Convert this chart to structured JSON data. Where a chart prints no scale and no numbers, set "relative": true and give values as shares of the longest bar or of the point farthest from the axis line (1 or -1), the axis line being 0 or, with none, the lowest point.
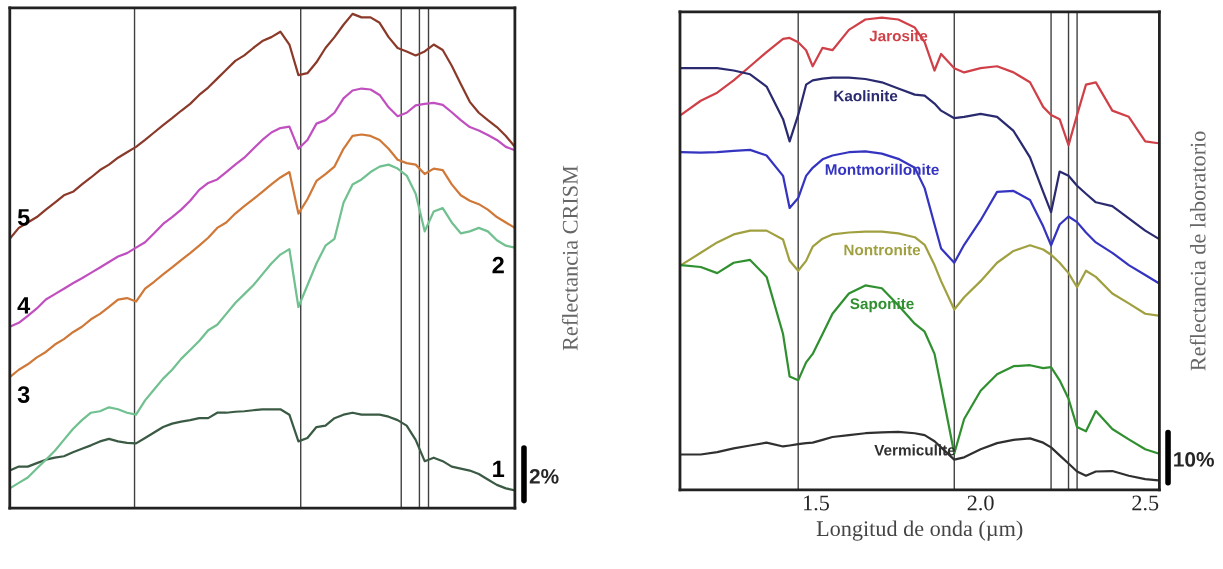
{
  "chart_data": [
    {
      "type": "line",
      "relative": true,
      "ylabel": "Reflectancia CRISM",
      "tick_labels": false,
      "grid": false,
      "legend": false,
      "categories": [
        null,
        null,
        null,
        null,
        null,
        null,
        null,
        null,
        null,
        null,
        null,
        null,
        null,
        null,
        null,
        null,
        null,
        null,
        null,
        null,
        null,
        null,
        null,
        null,
        null,
        null,
        null,
        null,
        null,
        null,
        null,
        null,
        null,
        null,
        null,
        null,
        null,
        null,
        null,
        null,
        null,
        null,
        null,
        null,
        null,
        null,
        null,
        null,
        null,
        null,
        null,
        null,
        null,
        null,
        null,
        null,
        null
      ],
      "annotations": [
        "2%"
      ],
      "series": [
        {
          "name": "1",
          "color": "#3a5a44",
          "values": [
            0.076,
            0.084,
            0.084,
            0.091,
            0.098,
            0.102,
            0.105,
            0.113,
            0.12,
            0.127,
            0.135,
            0.14,
            0.135,
            0.132,
            0.131,
            0.142,
            0.153,
            0.164,
            0.171,
            0.175,
            0.178,
            0.182,
            0.182,
            0.193,
            0.193,
            0.195,
            0.196,
            0.198,
            0.2,
            0.2,
            0.2,
            0.189,
            0.135,
            0.142,
            0.164,
            0.167,
            0.182,
            0.189,
            0.193,
            0.189,
            0.189,
            0.189,
            0.185,
            0.178,
            0.167,
            0.138,
            0.095,
            0.102,
            0.095,
            0.084,
            0.08,
            0.076,
            0.069,
            0.058,
            0.047,
            0.04,
            0.036
          ]
        },
        {
          "name": "2",
          "color": "#70c090",
          "values": [
            0.04,
            0.051,
            0.062,
            0.08,
            0.098,
            0.116,
            0.138,
            0.16,
            0.178,
            0.193,
            0.196,
            0.204,
            0.2,
            0.193,
            0.189,
            0.218,
            0.24,
            0.262,
            0.28,
            0.302,
            0.32,
            0.338,
            0.36,
            0.371,
            0.393,
            0.415,
            0.433,
            0.451,
            0.473,
            0.495,
            0.513,
            0.524,
            0.407,
            0.451,
            0.495,
            0.531,
            0.545,
            0.618,
            0.655,
            0.665,
            0.68,
            0.691,
            0.695,
            0.687,
            0.673,
            0.636,
            0.56,
            0.6,
            0.607,
            0.578,
            0.556,
            0.56,
            0.567,
            0.56,
            0.542,
            0.531,
            0.527
          ]
        },
        {
          "name": "3",
          "color": "#d07838",
          "values": [
            0.265,
            0.28,
            0.291,
            0.305,
            0.316,
            0.331,
            0.342,
            0.356,
            0.367,
            0.382,
            0.393,
            0.407,
            0.422,
            0.425,
            0.418,
            0.444,
            0.458,
            0.473,
            0.487,
            0.502,
            0.516,
            0.531,
            0.547,
            0.567,
            0.578,
            0.596,
            0.611,
            0.625,
            0.64,
            0.655,
            0.669,
            0.68,
            0.596,
            0.625,
            0.662,
            0.676,
            0.691,
            0.727,
            0.753,
            0.756,
            0.753,
            0.745,
            0.727,
            0.705,
            0.698,
            0.695,
            0.676,
            0.687,
            0.684,
            0.655,
            0.633,
            0.622,
            0.615,
            0.604,
            0.589,
            0.578,
            0.567
          ]
        },
        {
          "name": "4",
          "color": "#c050c0",
          "values": [
            0.367,
            0.375,
            0.389,
            0.404,
            0.422,
            0.433,
            0.444,
            0.455,
            0.465,
            0.476,
            0.487,
            0.498,
            0.509,
            0.516,
            0.527,
            0.538,
            0.556,
            0.575,
            0.589,
            0.604,
            0.622,
            0.644,
            0.658,
            0.665,
            0.68,
            0.695,
            0.709,
            0.727,
            0.745,
            0.76,
            0.769,
            0.772,
            0.727,
            0.745,
            0.778,
            0.785,
            0.8,
            0.829,
            0.845,
            0.849,
            0.847,
            0.836,
            0.811,
            0.793,
            0.8,
            0.815,
            0.818,
            0.82,
            0.816,
            0.801,
            0.785,
            0.771,
            0.764,
            0.755,
            0.745,
            0.731,
            0.724
          ]
        },
        {
          "name": "5",
          "color": "#8b3a2a",
          "values": [
            0.545,
            0.567,
            0.578,
            0.589,
            0.604,
            0.618,
            0.633,
            0.64,
            0.655,
            0.669,
            0.684,
            0.695,
            0.709,
            0.72,
            0.731,
            0.745,
            0.76,
            0.775,
            0.789,
            0.804,
            0.818,
            0.836,
            0.851,
            0.869,
            0.887,
            0.905,
            0.916,
            0.931,
            0.945,
            0.953,
            0.964,
            0.938,
            0.876,
            0.88,
            0.902,
            0.931,
            0.953,
            0.978,
            1.0,
            0.993,
            0.993,
            0.982,
            0.953,
            0.931,
            0.924,
            0.916,
            0.924,
            0.938,
            0.927,
            0.895,
            0.858,
            0.822,
            0.8,
            0.785,
            0.771,
            0.753,
            0.731
          ]
        }
      ]
    },
    {
      "type": "line",
      "relative": true,
      "xlabel": "Longitud de onda (µm)",
      "ylabel": "Reflectancia de laboratorio",
      "tick_labels": "x",
      "grid": false,
      "legend": false,
      "x": [
        1.09,
        1.15,
        1.2,
        1.25,
        1.3,
        1.35,
        1.4,
        1.42,
        1.446,
        1.47,
        1.49,
        1.52,
        1.55,
        1.6,
        1.65,
        1.7,
        1.75,
        1.8,
        1.83,
        1.86,
        1.88,
        1.92,
        1.95,
        2.0,
        2.05,
        2.1,
        2.15,
        2.19,
        2.214,
        2.24,
        2.267,
        2.293,
        2.32,
        2.35,
        2.4,
        2.45,
        2.5,
        2.54
      ],
      "xlim": [
        1.087,
        2.543
      ],
      "xticks": [
        1.5,
        {
          "value": 2.0,
          "label": "2.0"
        },
        2.5
      ],
      "ref_lines": [
        {
          "axis": "x",
          "value": 1.446,
          "color": "#404040"
        },
        {
          "axis": "x",
          "value": 1.92,
          "color": "#404040"
        },
        {
          "axis": "x",
          "value": 2.214,
          "color": "#404040"
        },
        {
          "axis": "x",
          "value": 2.267,
          "color": "#404040"
        },
        {
          "axis": "x",
          "value": 2.293,
          "color": "#404040"
        }
      ],
      "annotations": [
        "10%"
      ],
      "series": [
        {
          "name": "Jarosite",
          "color": "#d04048",
          "values": [
            0.794,
            0.824,
            0.841,
            0.867,
            0.897,
            0.927,
            0.955,
            0.957,
            0.948,
            0.931,
            0.897,
            0.936,
            0.931,
            0.974,
            0.996,
            1.0,
            0.996,
            0.979,
            0.948,
            0.888,
            0.923,
            0.893,
            0.884,
            0.893,
            0.897,
            0.884,
            0.863,
            0.811,
            0.794,
            0.785,
            0.73,
            0.794,
            0.858,
            0.863,
            0.803,
            0.79,
            0.738,
            0.734
          ]
        },
        {
          "name": "Kaolinite",
          "color": "#2a2a70",
          "values": [
            0.893,
            0.893,
            0.893,
            0.888,
            0.88,
            0.854,
            0.785,
            0.738,
            0.794,
            0.858,
            0.867,
            0.871,
            0.873,
            0.873,
            0.87,
            0.863,
            0.85,
            0.837,
            0.835,
            0.818,
            0.803,
            0.787,
            0.79,
            0.796,
            0.79,
            0.76,
            0.704,
            0.631,
            0.588,
            0.674,
            0.665,
            0.644,
            0.627,
            0.609,
            0.601,
            0.575,
            0.549,
            0.532
          ]
        },
        {
          "name": "Montmorillonite",
          "color": "#3434c0",
          "values": [
            0.715,
            0.714,
            0.715,
            0.718,
            0.72,
            0.708,
            0.665,
            0.597,
            0.618,
            0.665,
            0.682,
            0.7,
            0.708,
            0.715,
            0.717,
            0.712,
            0.701,
            0.682,
            0.639,
            0.562,
            0.511,
            0.481,
            0.519,
            0.571,
            0.631,
            0.633,
            0.614,
            0.558,
            0.518,
            0.562,
            0.579,
            0.567,
            0.545,
            0.524,
            0.502,
            0.476,
            0.455,
            0.438
          ]
        },
        {
          "name": "Nontronite",
          "color": "#a0a040",
          "values": [
            0.476,
            0.502,
            0.524,
            0.541,
            0.549,
            0.549,
            0.53,
            0.485,
            0.464,
            0.485,
            0.515,
            0.532,
            0.541,
            0.545,
            0.547,
            0.547,
            0.543,
            0.535,
            0.519,
            0.476,
            0.442,
            0.382,
            0.408,
            0.442,
            0.481,
            0.506,
            0.518,
            0.509,
            0.498,
            0.481,
            0.459,
            0.429,
            0.464,
            0.451,
            0.416,
            0.395,
            0.373,
            0.369
          ]
        },
        {
          "name": "Saponite",
          "color": "#309030",
          "values": [
            0.476,
            0.472,
            0.459,
            0.481,
            0.487,
            0.451,
            0.33,
            0.24,
            0.232,
            0.27,
            0.288,
            0.33,
            0.373,
            0.416,
            0.433,
            0.427,
            0.391,
            0.352,
            0.335,
            0.288,
            0.219,
            0.077,
            0.15,
            0.21,
            0.245,
            0.262,
            0.264,
            0.258,
            0.26,
            0.232,
            0.193,
            0.133,
            0.124,
            0.167,
            0.129,
            0.107,
            0.086,
            0.077
          ]
        },
        {
          "name": "Vermiculite",
          "color": "#303030",
          "values": [
            0.075,
            0.075,
            0.08,
            0.088,
            0.094,
            0.1,
            0.092,
            0.094,
            0.097,
            0.099,
            0.1,
            0.106,
            0.112,
            0.116,
            0.12,
            0.122,
            0.123,
            0.12,
            0.116,
            0.103,
            0.09,
            0.064,
            0.069,
            0.086,
            0.099,
            0.106,
            0.109,
            0.1,
            0.09,
            0.073,
            0.056,
            0.039,
            0.03,
            0.039,
            0.04,
            0.03,
            0.023,
            0.02
          ]
        }
      ]
    }
  ]
}
